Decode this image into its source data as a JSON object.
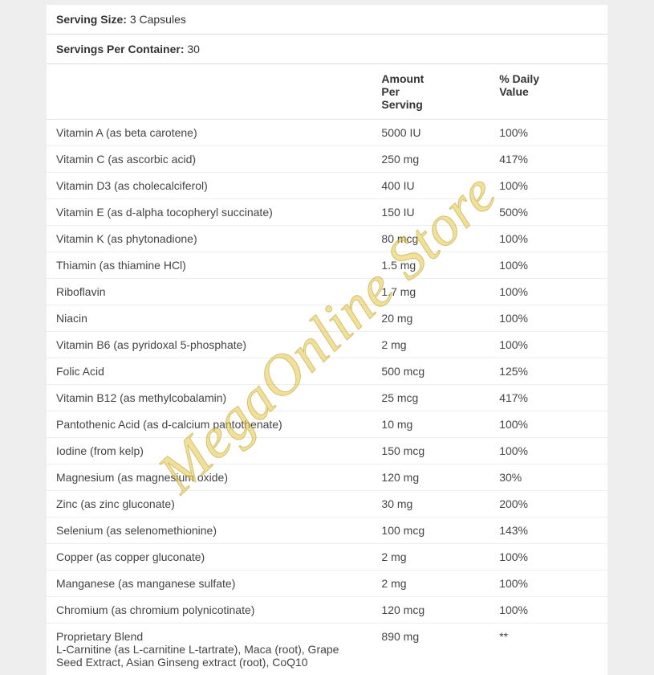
{
  "serving_size": {
    "label": "Serving Size:",
    "value": "3 Capsules"
  },
  "servings_per_container": {
    "label": "Servings Per Container:",
    "value": "30"
  },
  "columns": {
    "amount": "Amount Per Serving",
    "dv": "% Daily Value"
  },
  "rows": [
    {
      "name": "Vitamin A (as beta carotene)",
      "amount": "5000 IU",
      "dv": "100%"
    },
    {
      "name": "Vitamin C (as ascorbic acid)",
      "amount": "250 mg",
      "dv": "417%"
    },
    {
      "name": "Vitamin D3 (as cholecalciferol)",
      "amount": "400 IU",
      "dv": "100%"
    },
    {
      "name": "Vitamin E (as d-alpha tocopheryl succinate)",
      "amount": "150 IU",
      "dv": "500%"
    },
    {
      "name": "Vitamin K (as phytonadione)",
      "amount": "80 mcg",
      "dv": "100%"
    },
    {
      "name": "Thiamin (as thiamine HCl)",
      "amount": "1.5 mg",
      "dv": "100%"
    },
    {
      "name": "Riboflavin",
      "amount": "1.7 mg",
      "dv": "100%"
    },
    {
      "name": "Niacin",
      "amount": "20 mg",
      "dv": "100%"
    },
    {
      "name": "Vitamin B6 (as pyridoxal 5-phosphate)",
      "amount": "2 mg",
      "dv": "100%"
    },
    {
      "name": "Folic Acid",
      "amount": "500 mcg",
      "dv": "125%"
    },
    {
      "name": "Vitamin B12 (as methylcobalamin)",
      "amount": "25 mcg",
      "dv": "417%"
    },
    {
      "name": "Pantothenic Acid (as d-calcium pantothenate)",
      "amount": "10 mg",
      "dv": "100%"
    },
    {
      "name": "Iodine (from kelp)",
      "amount": "150 mcg",
      "dv": "100%"
    },
    {
      "name": "Magnesium (as magnesium oxide)",
      "amount": "120 mg",
      "dv": "30%"
    },
    {
      "name": "Zinc (as zinc gluconate)",
      "amount": "30 mg",
      "dv": "200%"
    },
    {
      "name": "Selenium (as selenomethionine)",
      "amount": "100 mcg",
      "dv": "143%"
    },
    {
      "name": "Copper (as copper gluconate)",
      "amount": "2 mg",
      "dv": "100%"
    },
    {
      "name": "Manganese (as manganese sulfate)",
      "amount": "2 mg",
      "dv": "100%"
    },
    {
      "name": "Chromium (as chromium polynicotinate)",
      "amount": "120 mcg",
      "dv": "100%"
    },
    {
      "name": "Proprietary Blend\nL-Carnitine (as L-carnitine L-tartrate), Maca (root), Grape Seed Extract, Asian Ginseng extract (root), CoQ10",
      "amount": "890 mg",
      "dv": "**"
    }
  ],
  "watermark": "MegaOnline Store",
  "styles": {
    "page_bg": "#eeeeee",
    "panel_bg": "#ffffff",
    "text_color": "#333333",
    "row_border": "#eeeeee",
    "header_border": "#dcdcdc",
    "font_size_pt": 10.5,
    "watermark_color": "rgba(228,199,70,0.55)",
    "watermark_angle_deg": -43
  }
}
